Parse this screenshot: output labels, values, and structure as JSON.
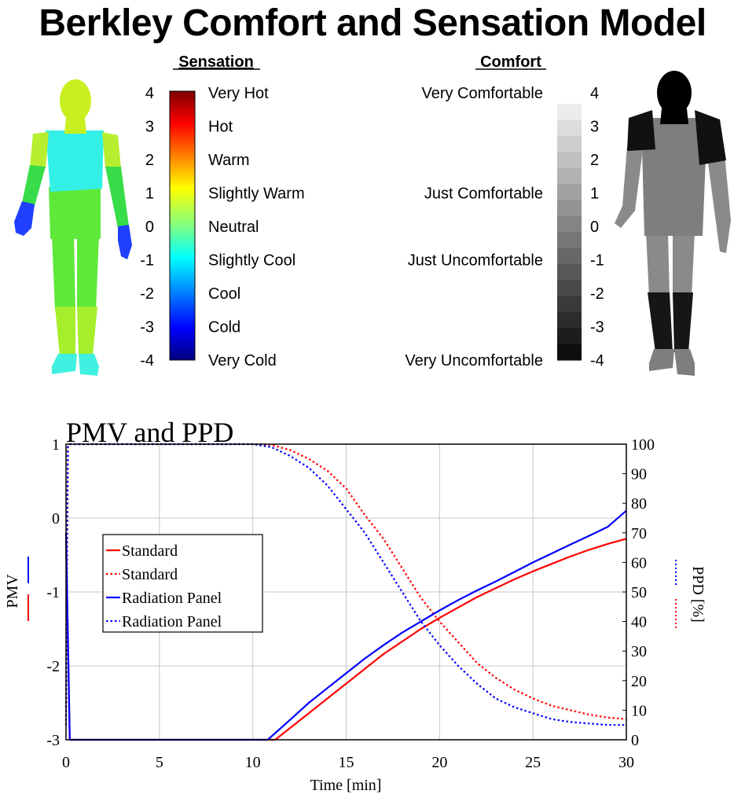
{
  "title": "Berkley Comfort and Sensation Model",
  "sensation": {
    "heading": "Sensation",
    "ticks": [
      "4",
      "3",
      "2",
      "1",
      "0",
      "-1",
      "-2",
      "-3",
      "-4"
    ],
    "labels": [
      "Very Hot",
      "Hot",
      "Warm",
      "Slightly Warm",
      "Neutral",
      "Slightly Cool",
      "Cool",
      "Cold",
      "Very Cold"
    ],
    "colors": {
      "head": "#c8f020",
      "chest": "#33f0e6",
      "upper_arm": "#b8ee30",
      "forearm": "#38dc48",
      "hand": "#2040ff",
      "pelvis": "#5ee83a",
      "thigh": "#5ee83a",
      "lower_leg": "#a6ee2c",
      "foot": "#40f0e0"
    }
  },
  "comfort": {
    "heading": "Comfort",
    "ticks": [
      "4",
      "3",
      "2",
      "1",
      "0",
      "-1",
      "-2",
      "-3",
      "-4"
    ],
    "labels": [
      "Very Comfortable",
      "Just Comfortable",
      "Just Uncomfortable",
      "Very Uncomfortable"
    ],
    "label_levels": [
      4,
      1,
      -1,
      -4
    ],
    "colors": {
      "head": "#000000",
      "shoulder": "#111111",
      "arm": "#8a8a8a",
      "body": "#7e7e7e",
      "thigh": "#8a8a8a",
      "knee": "#161616",
      "lower_leg": "#161616",
      "foot": "#7e7e7e"
    }
  },
  "chart_data": {
    "type": "line",
    "title": "PMV and PPD",
    "xlabel": "Time [min]",
    "ylabel_left": "PMV",
    "ylabel_right": "PPD [%]",
    "xlim": [
      0,
      30
    ],
    "ylim_left": [
      -3,
      1
    ],
    "ylim_right": [
      0,
      100
    ],
    "x_ticks": [
      "0",
      "5",
      "10",
      "15",
      "20",
      "25",
      "30"
    ],
    "y_left_ticks": [
      "1",
      "0",
      "-1",
      "-2",
      "-3"
    ],
    "y_right_ticks": [
      "100",
      "90",
      "80",
      "70",
      "60",
      "50",
      "40",
      "30",
      "20",
      "10",
      "0"
    ],
    "grid": true,
    "legend_position": "left-middle",
    "series": [
      {
        "name": "Standard",
        "axis": "PMV",
        "color": "#ff0000",
        "style": "solid",
        "x": [
          0,
          0.1,
          0.2,
          11.2,
          12,
          13,
          14,
          15,
          16,
          17,
          18,
          19,
          20,
          21,
          22,
          23,
          24,
          25,
          26,
          27,
          28,
          29,
          30
        ],
        "y": [
          -0.3,
          -1.6,
          -3,
          -3,
          -2.84,
          -2.64,
          -2.44,
          -2.24,
          -2.04,
          -1.84,
          -1.67,
          -1.5,
          -1.35,
          -1.21,
          -1.07,
          -0.95,
          -0.83,
          -0.72,
          -0.62,
          -0.52,
          -0.43,
          -0.35,
          -0.28
        ]
      },
      {
        "name": "Standard",
        "axis": "PPD",
        "color": "#ff0000",
        "style": "dotted",
        "x": [
          0,
          0.05,
          0.1,
          0.2,
          10.5,
          11,
          12,
          13,
          14,
          15,
          16,
          17,
          18,
          19,
          20,
          21,
          22,
          23,
          24,
          25,
          26,
          27,
          28,
          29,
          30
        ],
        "y": [
          8,
          60,
          99,
          100,
          100,
          99.8,
          98,
          95,
          91,
          85,
          76,
          68,
          58,
          48,
          40,
          33,
          26,
          21,
          17,
          14,
          11.5,
          10,
          8.5,
          7.5,
          7
        ]
      },
      {
        "name": "Radiation Panel",
        "axis": "PMV",
        "color": "#0000ff",
        "style": "solid",
        "x": [
          0,
          0.1,
          0.2,
          10.8,
          12,
          13,
          14,
          15,
          16,
          17,
          18,
          19,
          20,
          21,
          22,
          23,
          24,
          25,
          26,
          27,
          28,
          29,
          30
        ],
        "y": [
          -0.2,
          -1.6,
          -3,
          -3,
          -2.73,
          -2.5,
          -2.3,
          -2.1,
          -1.9,
          -1.72,
          -1.55,
          -1.4,
          -1.25,
          -1.11,
          -0.98,
          -0.86,
          -0.73,
          -0.6,
          -0.48,
          -0.36,
          -0.24,
          -0.12,
          0.1
        ]
      },
      {
        "name": "Radiation Panel",
        "axis": "PPD",
        "color": "#0000ff",
        "style": "dotted",
        "x": [
          0,
          0.05,
          0.1,
          0.2,
          10,
          11,
          12,
          13,
          14,
          15,
          16,
          17,
          18,
          19,
          20,
          21,
          22,
          23,
          24,
          25,
          26,
          27,
          28,
          29,
          30
        ],
        "y": [
          5,
          60,
          99,
          100,
          100,
          99,
          96,
          92,
          86,
          78,
          70,
          60,
          50,
          40,
          32,
          25,
          19,
          14,
          11,
          9,
          7,
          6,
          5.5,
          5,
          5
        ]
      }
    ]
  }
}
